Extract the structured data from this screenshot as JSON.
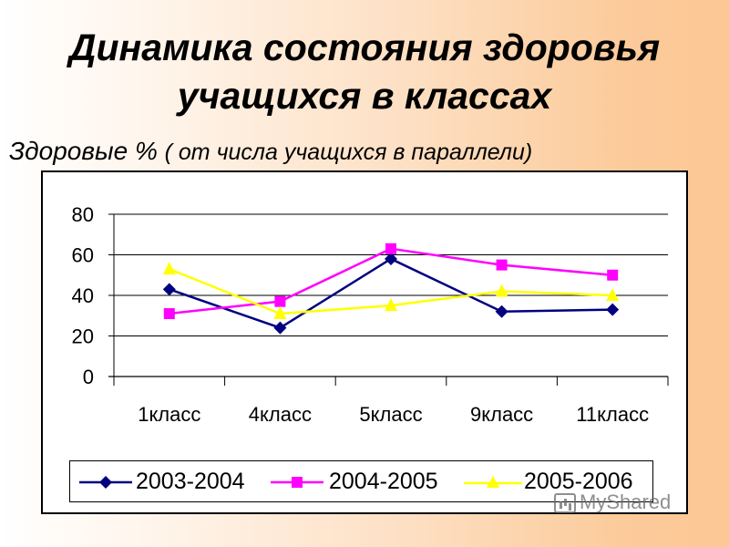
{
  "slide": {
    "title_line1": "Динамика состояния здоровья",
    "title_line2": "учащихся в классах",
    "subtitle_main": "Здоровые % ",
    "subtitle_note": "( от числа учащихся в параллели)",
    "watermark": "MyShared"
  },
  "colors": {
    "series_2003_2004": "#000080",
    "series_2004_2005": "#ff00ff",
    "series_2005_2006": "#ffff00",
    "gridline": "#000000",
    "background_start": "#ffffff",
    "background_end": "#fcc894"
  },
  "chart_data": {
    "type": "line",
    "title": "Здоровые % ( от числа учащихся в параллели)",
    "xlabel": "",
    "ylabel": "",
    "categories": [
      "1класс",
      "4класс",
      "5класс",
      "9класс",
      "11класс"
    ],
    "series": [
      {
        "name": "2003-2004",
        "marker": "diamond",
        "color": "#000080",
        "values": [
          43,
          24,
          58,
          32,
          33
        ]
      },
      {
        "name": "2004-2005",
        "marker": "square",
        "color": "#ff00ff",
        "values": [
          31,
          37,
          63,
          55,
          50
        ]
      },
      {
        "name": "2005-2006",
        "marker": "triangle",
        "color": "#ffff00",
        "values": [
          53,
          31,
          35,
          42,
          40
        ]
      }
    ],
    "yticks": [
      0,
      20,
      40,
      60,
      80
    ],
    "ylim": [
      0,
      80
    ],
    "grid": true,
    "legend_position": "bottom"
  }
}
